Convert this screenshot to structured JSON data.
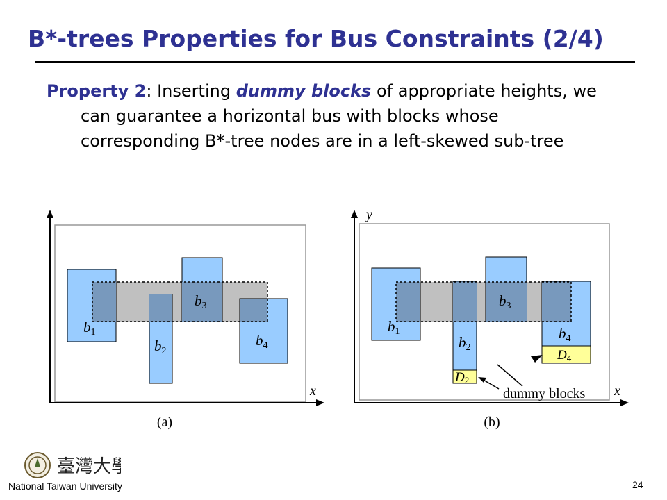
{
  "slide": {
    "title": "B*-trees Properties for Bus Constraints (2/4)",
    "property_label": "Property 2",
    "text_before": ": Inserting ",
    "text_emphasis": "dummy blocks",
    "text_after": " of appropriate heights, we can guarantee a horizontal bus with blocks whose corresponding B*-tree nodes are in a left-skewed sub-tree"
  },
  "figure_a": {
    "caption": "(a)",
    "x_axis_label": "x",
    "blocks": [
      "b",
      "b",
      "b",
      "b"
    ],
    "block_subscripts": [
      "1",
      "2",
      "3",
      "4"
    ]
  },
  "figure_b": {
    "caption": "(b)",
    "x_axis_label": "x",
    "y_axis_label": "y",
    "blocks": [
      "b",
      "b",
      "b",
      "b"
    ],
    "block_subscripts": [
      "1",
      "2",
      "3",
      "4"
    ],
    "dummy": [
      "D",
      "D"
    ],
    "dummy_subscripts": [
      "2",
      "4"
    ],
    "dummy_callout": "dummy blocks"
  },
  "colors": {
    "block": "#99ccff",
    "bus": "#c0c0c0",
    "overlap": "#7899bd",
    "dummy": "#ffff99",
    "title": "#2e3192"
  },
  "footer": {
    "university": "National Taiwan University",
    "logo_text": "臺灣大學",
    "page_number": "24"
  }
}
